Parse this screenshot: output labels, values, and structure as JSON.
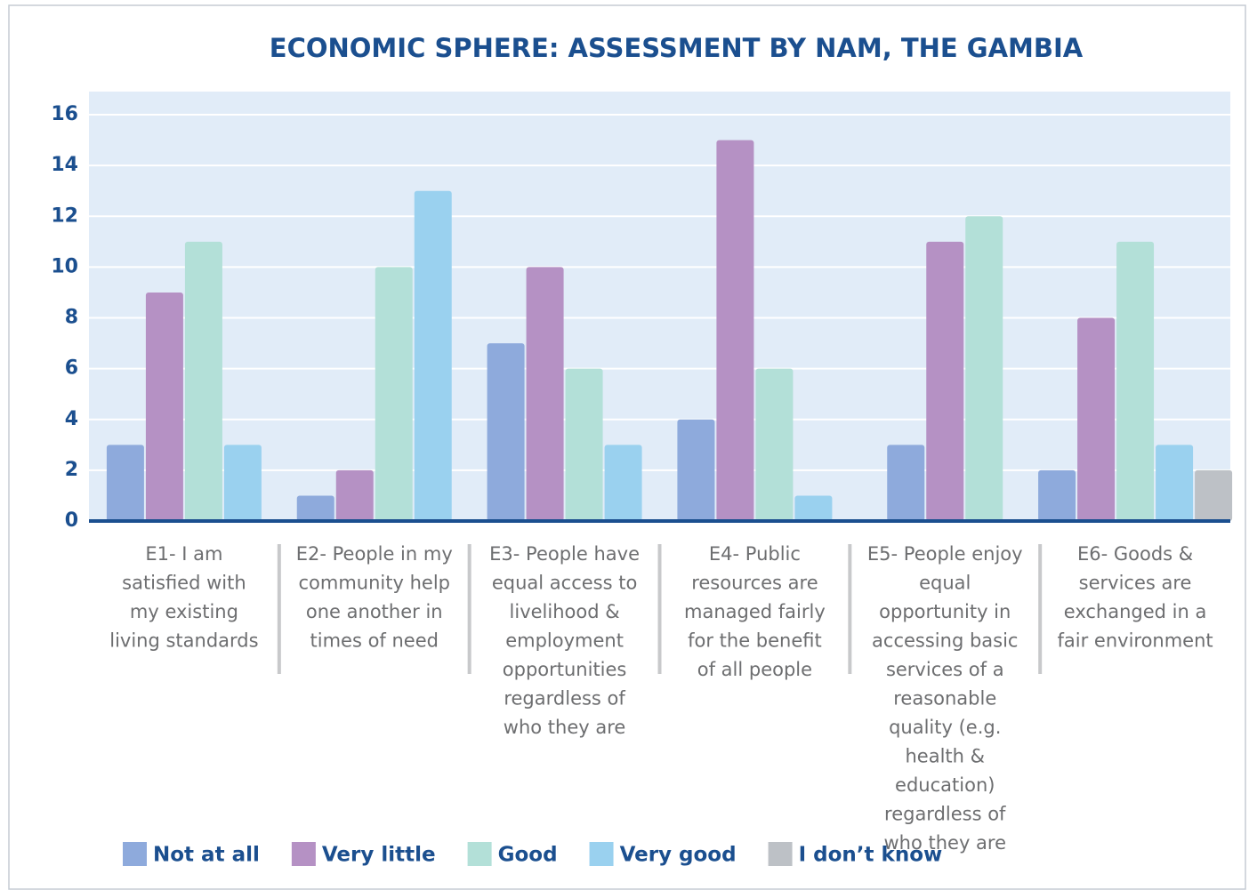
{
  "chart_data": {
    "type": "bar",
    "title": "ECONOMIC SPHERE:  ASSESSMENT BY NAM,  THE GAMBIA",
    "categories": [
      "E1- I am satisfied with my existing living standards",
      "E2- People in my community help one another in times of need",
      "E3- People have equal access to livelihood & employment opportunities regardless of who they are",
      "E4- Public resources are managed fairly for the benefit of all people",
      "E5- People enjoy equal opportunity in accessing basic services of a reasonable quality (e.g. health & education) regardless of who they are",
      "E6- Goods & services are exchanged in a fair environment"
    ],
    "series": [
      {
        "name": "Not at all",
        "color": "#8eaadc",
        "values": [
          3,
          1,
          7,
          4,
          3,
          2
        ]
      },
      {
        "name": "Very little",
        "color": "#b591c4",
        "values": [
          9,
          2,
          10,
          15,
          11,
          8
        ]
      },
      {
        "name": "Good",
        "color": "#b3e0d8",
        "values": [
          11,
          10,
          6,
          6,
          12,
          11
        ]
      },
      {
        "name": "Very good",
        "color": "#9ad1ef",
        "values": [
          3,
          13,
          3,
          1,
          null,
          3
        ]
      },
      {
        "name": "I don’t know",
        "color": "#bdc1c6",
        "values": [
          null,
          null,
          null,
          null,
          null,
          2
        ]
      }
    ],
    "ylim": [
      0,
      16
    ],
    "yticks": [
      0,
      2,
      4,
      6,
      8,
      10,
      12,
      14,
      16
    ],
    "grid": true,
    "legend": "bottom"
  }
}
